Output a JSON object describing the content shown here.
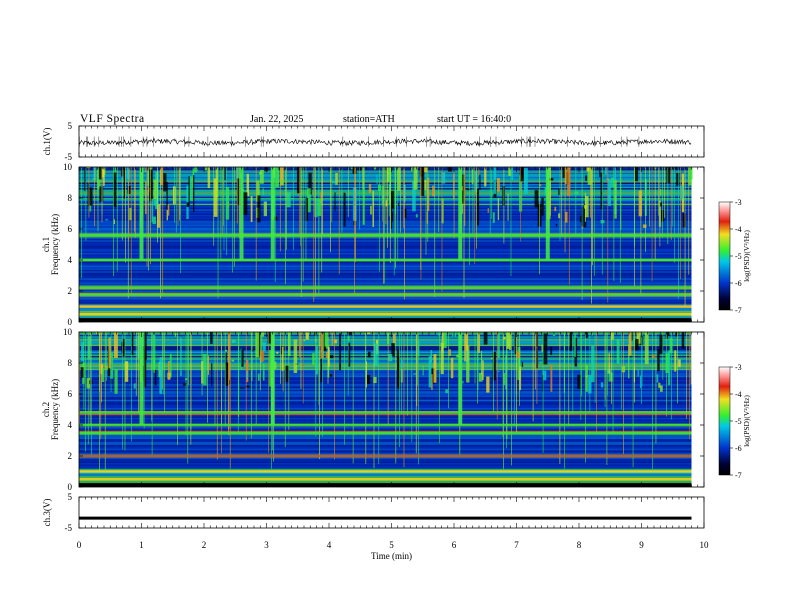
{
  "header": {
    "title": "VLF  Spectra",
    "date": "Jan. 22, 2025",
    "station": "station=ATH",
    "start": "start  UT  =   16:40:0"
  },
  "chart_data": [
    {
      "type": "line",
      "ylabel": "ch.1(V)",
      "yticks": [
        "5",
        "-5"
      ],
      "ylim": [
        -5,
        5
      ],
      "series": [
        {
          "values_description": "noisy waveform around -0.2 V, amplitude approx ±1 V",
          "mean": -0.2,
          "amplitude": 1.0
        }
      ]
    },
    {
      "type": "heatmap",
      "ylabel_channel": "ch.1",
      "ylabel": "Frequency  (kHz)",
      "yticks": [
        "0",
        "2",
        "4",
        "6",
        "8",
        "10"
      ],
      "ylim": [
        0,
        10
      ],
      "xlim": [
        0,
        9.8
      ],
      "colorbar": {
        "label": "log(PSD)(V²/Hz)",
        "ticks": [
          "-3",
          "-4",
          "-5",
          "-6",
          "-7"
        ],
        "range": [
          -7,
          -3
        ]
      },
      "bands_khz": [
        0.5,
        1.0,
        1.8,
        2.2,
        4.0,
        5.6
      ],
      "spikes_min": [
        1.0,
        2.6,
        3.1,
        6.1,
        7.5
      ]
    },
    {
      "type": "heatmap",
      "ylabel_channel": "ch.2",
      "ylabel": "Frequency  (kHz)",
      "yticks": [
        "0",
        "2",
        "4",
        "6",
        "8",
        "10"
      ],
      "ylim": [
        0,
        10
      ],
      "xlim": [
        0,
        9.8
      ],
      "colorbar": {
        "label": "log(PSD)(V²/Hz)",
        "ticks": [
          "-3",
          "-4",
          "-5",
          "-6",
          "-7"
        ],
        "range": [
          -7,
          -3
        ]
      },
      "bands_khz": [
        0.5,
        1.0,
        2.0,
        3.5,
        4.0,
        4.8
      ],
      "spikes_min": [
        1.0,
        3.1,
        6.1
      ]
    },
    {
      "type": "line",
      "ylabel": "ch.3(V)",
      "yticks": [
        "5",
        "-5"
      ],
      "ylim": [
        -5,
        5
      ],
      "series": [
        {
          "values_description": "flat line near -1.8 V",
          "constant": -1.8
        }
      ]
    }
  ],
  "xaxis": {
    "label": "Time  (min)",
    "ticks": [
      "0",
      "1",
      "2",
      "3",
      "4",
      "5",
      "6",
      "7",
      "8",
      "9",
      "10"
    ],
    "xlim": [
      0,
      10
    ]
  },
  "colors": {
    "black": "#000000",
    "blue": "#0033cc",
    "cyan": "#00c8e6",
    "green": "#33ee33",
    "yellow": "#f0e020",
    "red": "#e02010"
  }
}
